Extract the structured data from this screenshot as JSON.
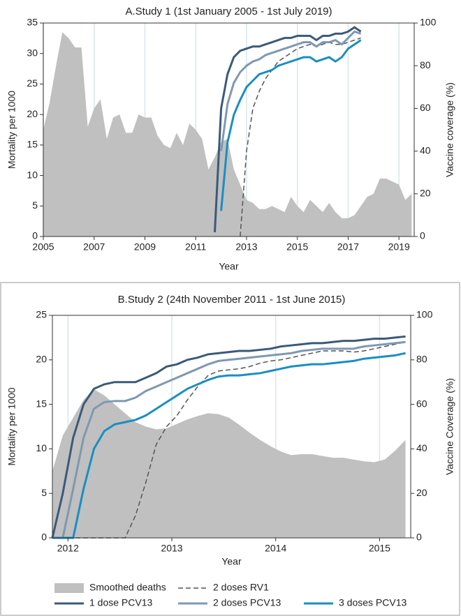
{
  "chart_data": [
    {
      "type": "line",
      "title": "A.Study 1 (1st January 2005 - 1st July 2019)",
      "x_label": "Year",
      "y_label": "Mortality per 1000",
      "y2_label": "Vaccine coverage (%)",
      "xlim": [
        2005,
        2019.6
      ],
      "xticks": [
        2005,
        2007,
        2009,
        2011,
        2013,
        2015,
        2017,
        2019
      ],
      "ylim": [
        0,
        35
      ],
      "yticks": [
        0,
        5,
        10,
        15,
        20,
        25,
        30,
        35
      ],
      "y2lim": [
        0,
        100
      ],
      "y2ticks": [
        0,
        20,
        40,
        60,
        80,
        100
      ],
      "grid": true,
      "x": [
        2005.0,
        2005.25,
        2005.5,
        2005.75,
        2006.0,
        2006.25,
        2006.5,
        2006.75,
        2007.0,
        2007.25,
        2007.5,
        2007.75,
        2008.0,
        2008.25,
        2008.5,
        2008.75,
        2009.0,
        2009.25,
        2009.5,
        2009.75,
        2010.0,
        2010.25,
        2010.5,
        2010.75,
        2011.0,
        2011.25,
        2011.5,
        2011.75,
        2012.0,
        2012.25,
        2012.5,
        2012.75,
        2013.0,
        2013.25,
        2013.5,
        2013.75,
        2014.0,
        2014.25,
        2014.5,
        2014.75,
        2015.0,
        2015.25,
        2015.5,
        2015.75,
        2016.0,
        2016.25,
        2016.5,
        2016.75,
        2017.0,
        2017.25,
        2017.5,
        2017.75,
        2018.0,
        2018.25,
        2018.5,
        2018.75,
        2019.0,
        2019.25,
        2019.5
      ],
      "series": [
        {
          "type": "area",
          "color": "#c0c0c0",
          "values": [
            17.5,
            22,
            28,
            33.5,
            32.5,
            31,
            31,
            18,
            21,
            22.5,
            16,
            19.5,
            20,
            17,
            17,
            20,
            19.5,
            19.5,
            16.5,
            15,
            14.5,
            17,
            15,
            18.5,
            17.5,
            16,
            11,
            13,
            15.5,
            16,
            11,
            8.5,
            6,
            5.5,
            4.5,
            4.5,
            5,
            4.5,
            4,
            6.5,
            5,
            4,
            6,
            5,
            4,
            5.5,
            4,
            3,
            3,
            3.5,
            5,
            6.5,
            7,
            9.5,
            9.5,
            9,
            8.5,
            6,
            7
          ]
        },
        {
          "type": "line",
          "style": "dashed",
          "axis": "y2",
          "color": "#555555",
          "values": [
            null,
            null,
            null,
            null,
            null,
            null,
            null,
            null,
            null,
            null,
            null,
            null,
            null,
            null,
            null,
            null,
            null,
            null,
            null,
            null,
            null,
            null,
            null,
            null,
            null,
            null,
            null,
            null,
            null,
            null,
            null,
            0,
            40,
            60,
            68,
            74,
            78,
            82,
            84,
            86,
            88,
            89,
            90,
            89,
            90,
            91,
            90,
            90,
            91,
            92,
            93,
            null,
            null,
            null,
            null,
            null,
            null,
            null,
            null
          ]
        },
        {
          "type": "line",
          "axis": "y2",
          "color": "#3b5a78",
          "values": [
            null,
            null,
            null,
            null,
            null,
            null,
            null,
            null,
            null,
            null,
            null,
            null,
            null,
            null,
            null,
            null,
            null,
            null,
            null,
            null,
            null,
            null,
            null,
            null,
            null,
            null,
            null,
            2,
            60,
            76,
            84,
            87,
            88,
            89,
            89,
            90,
            91,
            92,
            93,
            93,
            94,
            94,
            94,
            92,
            94,
            94,
            95,
            95,
            96,
            98,
            96,
            null,
            null,
            null,
            null,
            null,
            null,
            null,
            null
          ]
        },
        {
          "type": "line",
          "axis": "y2",
          "color": "#7f98b2",
          "values": [
            null,
            null,
            null,
            null,
            null,
            null,
            null,
            null,
            null,
            null,
            null,
            null,
            null,
            null,
            null,
            null,
            null,
            null,
            null,
            null,
            null,
            null,
            null,
            null,
            null,
            null,
            null,
            null,
            40,
            62,
            72,
            77,
            80,
            82,
            83,
            85,
            86,
            87,
            88,
            89,
            90,
            91,
            91,
            89,
            91,
            91,
            92,
            90,
            93,
            96,
            95,
            null,
            null,
            null,
            null,
            null,
            null,
            null,
            null
          ]
        },
        {
          "type": "line",
          "axis": "y2",
          "color": "#1a8ec2",
          "values": [
            null,
            null,
            null,
            null,
            null,
            null,
            null,
            null,
            null,
            null,
            null,
            null,
            null,
            null,
            null,
            null,
            null,
            null,
            null,
            null,
            null,
            null,
            null,
            null,
            null,
            null,
            null,
            null,
            12,
            44,
            57,
            64,
            70,
            73,
            76,
            77,
            78,
            80,
            81,
            82,
            83,
            84,
            84,
            82,
            83,
            84,
            82,
            84,
            88,
            90,
            92,
            null,
            null,
            null,
            null,
            null,
            null,
            null,
            null
          ]
        }
      ]
    },
    {
      "type": "line",
      "title": "B.Study 2 (24th November 2011 - 1st June 2015)",
      "x_label": "Year",
      "y_label": "Mortality per 1000",
      "y2_label": "Vaccine Coverage (%)",
      "xlim": [
        2011.85,
        2015.3
      ],
      "xticks": [
        2012,
        2013,
        2014,
        2015
      ],
      "ylim": [
        0,
        25
      ],
      "yticks": [
        0,
        5,
        10,
        15,
        20,
        25
      ],
      "y2lim": [
        0,
        100
      ],
      "y2ticks": [
        0,
        20,
        40,
        60,
        80,
        100
      ],
      "grid": true,
      "legend": "bottom",
      "x": [
        2011.85,
        2011.95,
        2012.05,
        2012.15,
        2012.25,
        2012.35,
        2012.45,
        2012.55,
        2012.65,
        2012.75,
        2012.85,
        2012.95,
        2013.05,
        2013.15,
        2013.25,
        2013.35,
        2013.45,
        2013.55,
        2013.65,
        2013.75,
        2013.85,
        2013.95,
        2014.05,
        2014.15,
        2014.25,
        2014.35,
        2014.45,
        2014.55,
        2014.65,
        2014.75,
        2014.85,
        2014.95,
        2015.05,
        2015.15,
        2015.25
      ],
      "series": [
        {
          "name": "Smoothed deaths",
          "type": "area",
          "color": "#c0c0c0",
          "values": [
            7.5,
            11.5,
            13.5,
            15.5,
            16.7,
            16,
            15,
            14,
            13,
            12.5,
            12.2,
            12.3,
            12.8,
            13.3,
            13.7,
            14,
            13.9,
            13.5,
            12.7,
            11.8,
            11,
            10.3,
            9.7,
            9.3,
            9.4,
            9.4,
            9.2,
            9,
            9,
            8.8,
            8.6,
            8.5,
            8.8,
            9.8,
            11
          ]
        },
        {
          "name": "2 doses RV1",
          "type": "line",
          "style": "dashed",
          "axis": "y2",
          "color": "#555555",
          "values": [
            0,
            0,
            0,
            0,
            0,
            0,
            0,
            0,
            10,
            25,
            42,
            50,
            55,
            62,
            68,
            73,
            75,
            75.5,
            76,
            77,
            78.5,
            79.5,
            80,
            81,
            82,
            83,
            84,
            84,
            84,
            83.5,
            84,
            85,
            86,
            87,
            88
          ]
        },
        {
          "name": "1 dose PCV13",
          "type": "line",
          "axis": "y2",
          "color": "#3b5a78",
          "values": [
            0,
            20,
            45,
            60,
            67,
            69,
            70,
            70,
            70,
            72,
            74,
            77,
            78,
            80,
            81,
            82.5,
            83,
            83.5,
            84,
            84,
            84.5,
            85,
            86,
            86.5,
            87,
            87.5,
            87.5,
            88,
            88.5,
            88.5,
            89,
            89.5,
            89.5,
            90,
            90.5
          ]
        },
        {
          "name": "2 doses PCV13",
          "type": "line",
          "axis": "y2",
          "color": "#7f98b2",
          "values": [
            0,
            0,
            22,
            45,
            58,
            61,
            61.5,
            61.5,
            63,
            66,
            68,
            70,
            72,
            74,
            76,
            78,
            79.5,
            80,
            80.5,
            81,
            81.5,
            82,
            82.5,
            83,
            84,
            84.5,
            85,
            85,
            85,
            85,
            86,
            86.5,
            87,
            87.5,
            88
          ]
        },
        {
          "name": "3 doses PCV13",
          "type": "line",
          "axis": "y2",
          "color": "#1a8ec2",
          "values": [
            0,
            0,
            0,
            22,
            40,
            48,
            51,
            52,
            53,
            55,
            58,
            61,
            64,
            67,
            69,
            71,
            72.5,
            73,
            73,
            73.5,
            74,
            75,
            76,
            77,
            77.5,
            78,
            78,
            78.5,
            79,
            79.5,
            80.5,
            81,
            81.5,
            82,
            83
          ]
        }
      ]
    }
  ]
}
